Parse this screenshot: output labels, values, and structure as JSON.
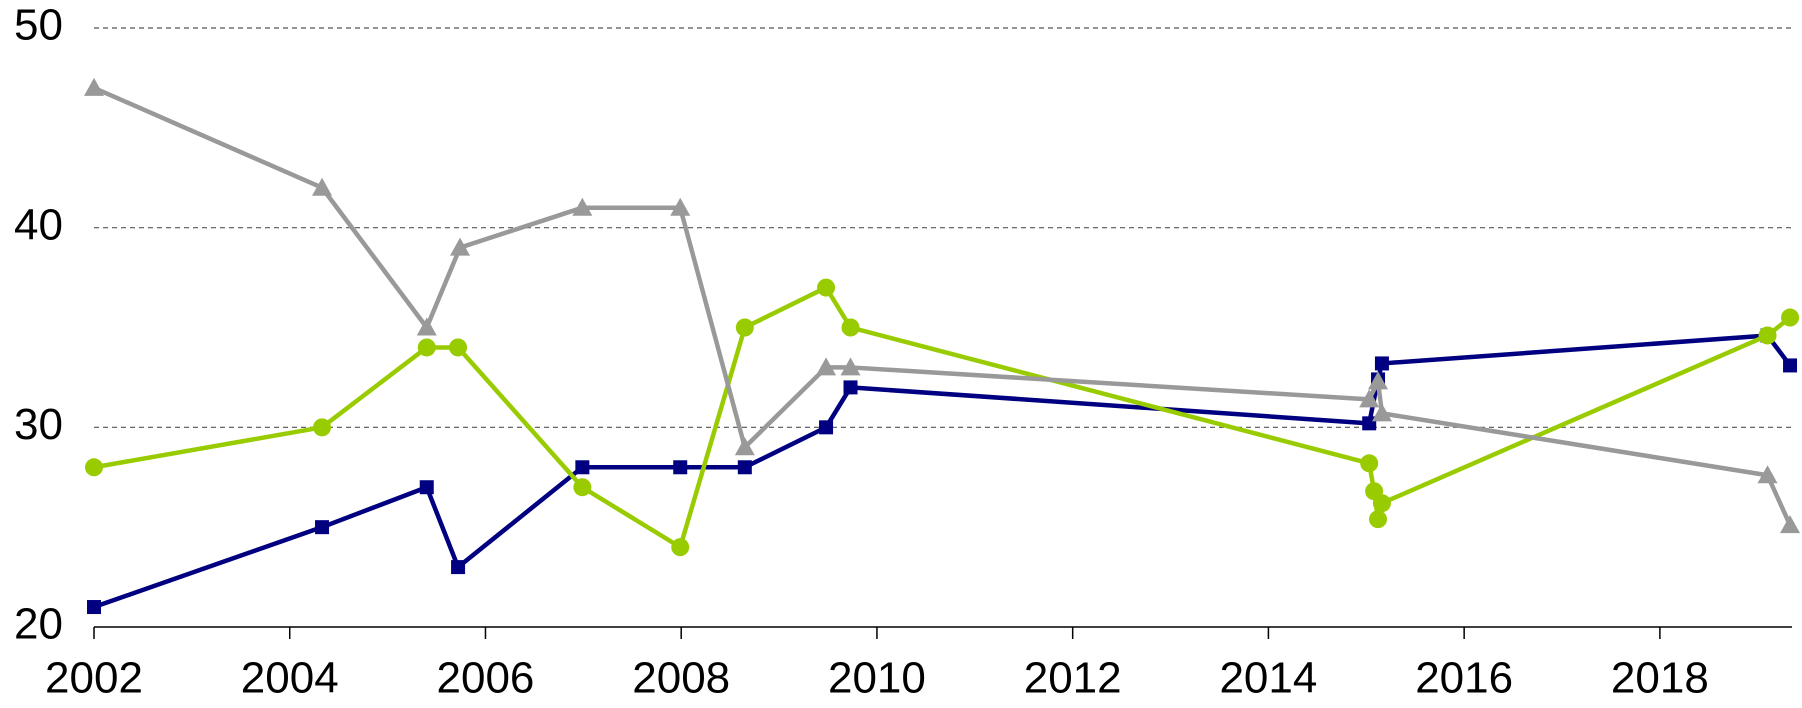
{
  "chart_data": {
    "type": "line",
    "xlim": [
      2002,
      2019.35
    ],
    "xticks": [
      2002,
      2004,
      2006,
      2008,
      2010,
      2012,
      2014,
      2016,
      2018
    ],
    "ylim": [
      20,
      50
    ],
    "yticks": [
      20,
      30,
      40,
      50
    ],
    "grid": true,
    "series": [
      {
        "color": "#000080",
        "marker": "square",
        "x": [
          2002,
          2004.33,
          2005.4,
          2005.72,
          2006.99,
          2007.99,
          2008.65,
          2009.48,
          2009.73,
          2015.03,
          2015.12,
          2015.16,
          2019.1,
          2019.33
        ],
        "values": [
          21,
          25,
          27,
          23,
          28,
          28,
          28,
          30,
          32,
          30.2,
          32.4,
          33.2,
          34.6,
          33.1
        ]
      },
      {
        "color": "#99cc00",
        "marker": "circle",
        "x": [
          2002,
          2004.33,
          2005.4,
          2005.72,
          2006.99,
          2007.99,
          2008.65,
          2009.48,
          2009.73,
          2015.03,
          2015.08,
          2015.12,
          2015.16,
          2019.1,
          2019.33
        ],
        "values": [
          28,
          30,
          34,
          34,
          27,
          24,
          35,
          37,
          35,
          28.2,
          26.8,
          25.4,
          26.2,
          34.6,
          35.5
        ]
      },
      {
        "color": "#999999",
        "marker": "triangle",
        "x": [
          2002,
          2004.33,
          2005.4,
          2005.74,
          2006.99,
          2007.99,
          2008.65,
          2009.48,
          2009.73,
          2015.03,
          2015.12,
          2015.16,
          2019.1,
          2019.33
        ],
        "values": [
          47,
          42,
          35,
          39,
          41,
          41,
          29,
          33,
          33,
          31.4,
          32.3,
          30.7,
          27.6,
          25.1
        ]
      }
    ]
  }
}
